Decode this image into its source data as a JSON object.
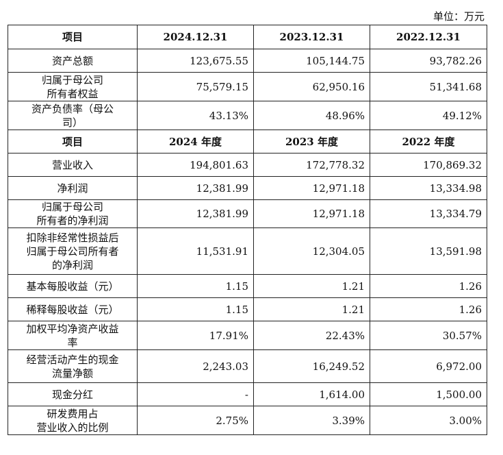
{
  "unit_label": "单位：万元",
  "section1": {
    "headers": [
      "项目",
      "2024.12.31",
      "2023.12.31",
      "2022.12.31"
    ],
    "rows": [
      {
        "label": "资产总额",
        "values": [
          "123,675.55",
          "105,144.75",
          "93,782.26"
        ]
      },
      {
        "label": "归属于母公司\n所有者权益",
        "values": [
          "75,579.15",
          "62,950.16",
          "51,341.68"
        ]
      },
      {
        "label": "资产负债率（母公\n司）",
        "values": [
          "43.13%",
          "48.96%",
          "49.12%"
        ]
      }
    ]
  },
  "section2": {
    "headers": [
      "项目",
      "2024 年度",
      "2023 年度",
      "2022 年度"
    ],
    "rows": [
      {
        "label": "营业收入",
        "values": [
          "194,801.63",
          "172,778.32",
          "170,869.32"
        ]
      },
      {
        "label": "净利润",
        "values": [
          "12,381.99",
          "12,971.18",
          "13,334.98"
        ]
      },
      {
        "label": "归属于母公司\n所有者的净利润",
        "values": [
          "12,381.99",
          "12,971.18",
          "13,334.79"
        ]
      },
      {
        "label": "扣除非经常性损益后\n归属于母公司所有者\n的净利润",
        "values": [
          "11,531.91",
          "12,304.05",
          "13,591.98"
        ]
      },
      {
        "label": "基本每股收益（元）",
        "values": [
          "1.15",
          "1.21",
          "1.26"
        ]
      },
      {
        "label": "稀释每股收益（元）",
        "values": [
          "1.15",
          "1.21",
          "1.26"
        ]
      },
      {
        "label": "加权平均净资产收益\n率",
        "values": [
          "17.91%",
          "22.43%",
          "30.57%"
        ]
      },
      {
        "label": "经营活动产生的现金\n流量净额",
        "values": [
          "2,243.03",
          "16,249.52",
          "6,972.00"
        ]
      },
      {
        "label": "现金分红",
        "values": [
          "-",
          "1,614.00",
          "1,500.00"
        ]
      },
      {
        "label": "研发费用占\n营业收入的比例",
        "values": [
          "2.75%",
          "3.39%",
          "3.00%"
        ]
      }
    ]
  }
}
